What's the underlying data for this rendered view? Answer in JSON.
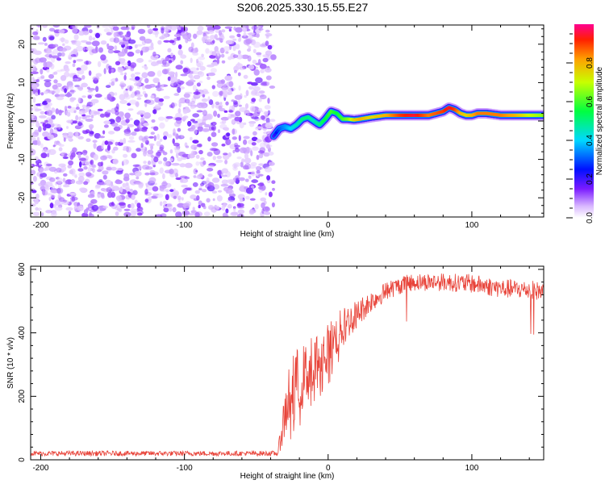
{
  "title": "S206.2025.330.15.55.E27",
  "chart_data": [
    {
      "type": "heatmap",
      "panel": "spectrogram",
      "xlabel": "Height of straight line (km)",
      "ylabel": "Frequency (Hz)",
      "xlim": [
        -207,
        150
      ],
      "ylim": [
        -25,
        25
      ],
      "xticks": [
        -200,
        -100,
        0,
        100
      ],
      "yticks": [
        -20,
        -10,
        0,
        10,
        20
      ],
      "noise_region_x": [
        -207,
        -38
      ],
      "signal_ridge": {
        "x": [
          -38,
          -34,
          -30,
          -26,
          -22,
          -18,
          -14,
          -10,
          -6,
          -2,
          2,
          6,
          10,
          14,
          18,
          22,
          30,
          40,
          50,
          60,
          70,
          80,
          84,
          88,
          92,
          96,
          100,
          104,
          110,
          120,
          130,
          140,
          150
        ],
        "freq_hz": [
          -4,
          -2,
          -1.5,
          -2,
          -1,
          0.5,
          1,
          0,
          -1,
          0.5,
          2.5,
          2,
          0.5,
          0.5,
          0.3,
          0.5,
          1,
          1.5,
          1.5,
          1.5,
          1.5,
          2.5,
          3.5,
          3,
          2,
          1.5,
          1.5,
          2,
          2,
          1.5,
          1.5,
          1.5,
          1.5
        ],
        "amplitude": [
          0.2,
          0.3,
          0.35,
          0.4,
          0.45,
          0.5,
          0.5,
          0.45,
          0.5,
          0.55,
          0.6,
          0.55,
          0.6,
          0.65,
          0.75,
          0.8,
          0.75,
          0.8,
          0.9,
          0.95,
          0.85,
          0.9,
          0.95,
          0.9,
          0.8,
          0.75,
          0.8,
          0.85,
          0.85,
          0.85,
          0.8,
          0.7,
          0.65
        ]
      },
      "colorbar": {
        "label": "Normalized spectral amplitude",
        "range": [
          0.0,
          1.0
        ],
        "ticks": [
          "0.0",
          "0.2",
          "0.4",
          "0.6",
          "0.8"
        ]
      }
    },
    {
      "type": "line",
      "panel": "snr",
      "xlabel": "Height of straight line (km)",
      "ylabel": "SNR (10 * v/v)",
      "xlim": [
        -207,
        150
      ],
      "ylim": [
        0,
        610
      ],
      "xticks": [
        -200,
        -100,
        0,
        100
      ],
      "yticks": [
        0,
        200,
        400,
        600
      ],
      "color": "#e8443a",
      "envelope": {
        "x": [
          -207,
          -100,
          -35,
          -28,
          -25,
          -20,
          -10,
          0,
          10,
          20,
          30,
          40,
          50,
          60,
          80,
          100,
          120,
          140,
          150
        ],
        "mean": [
          20,
          20,
          20,
          200,
          250,
          250,
          300,
          350,
          420,
          460,
          500,
          530,
          550,
          560,
          560,
          555,
          540,
          535,
          530
        ],
        "noise": [
          8,
          8,
          8,
          120,
          110,
          100,
          100,
          80,
          60,
          45,
          35,
          30,
          28,
          28,
          28,
          30,
          30,
          30,
          30
        ]
      }
    }
  ]
}
